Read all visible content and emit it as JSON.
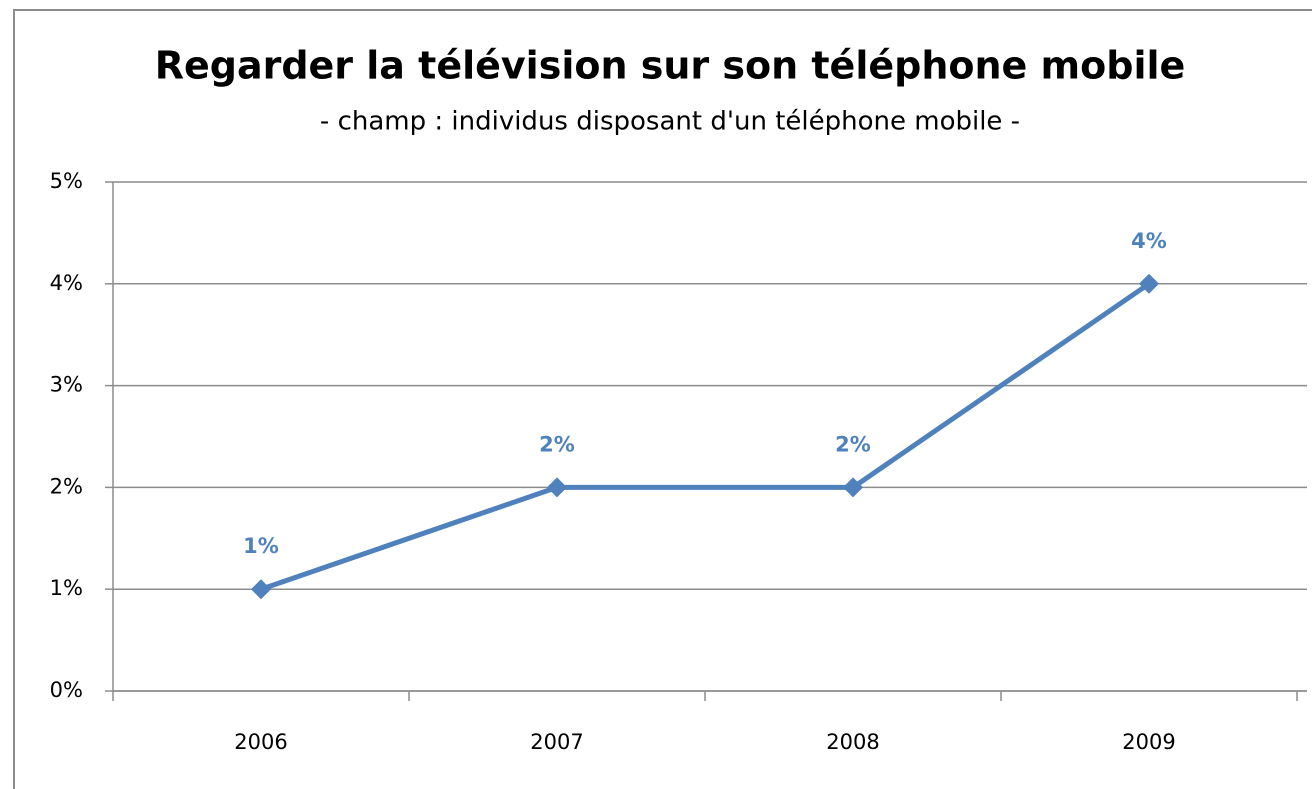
{
  "chart_data": {
    "type": "line",
    "title": "Regarder la télévision sur son téléphone mobile",
    "subtitle": "- champ : individus disposant d'un téléphone mobile -",
    "categories": [
      "2006",
      "2007",
      "2008",
      "2009"
    ],
    "values": [
      1,
      2,
      2,
      4
    ],
    "value_labels": [
      "1%",
      "2%",
      "2%",
      "4%"
    ],
    "color": "#4f81bd",
    "ylim": [
      0,
      5
    ],
    "yticks": [
      {
        "value": 0,
        "label": "0%"
      },
      {
        "value": 1,
        "label": "1%"
      },
      {
        "value": 2,
        "label": "2%"
      },
      {
        "value": 3,
        "label": "3%"
      },
      {
        "value": 4,
        "label": "4%"
      },
      {
        "value": 5,
        "label": "5%"
      }
    ],
    "grid": true
  }
}
